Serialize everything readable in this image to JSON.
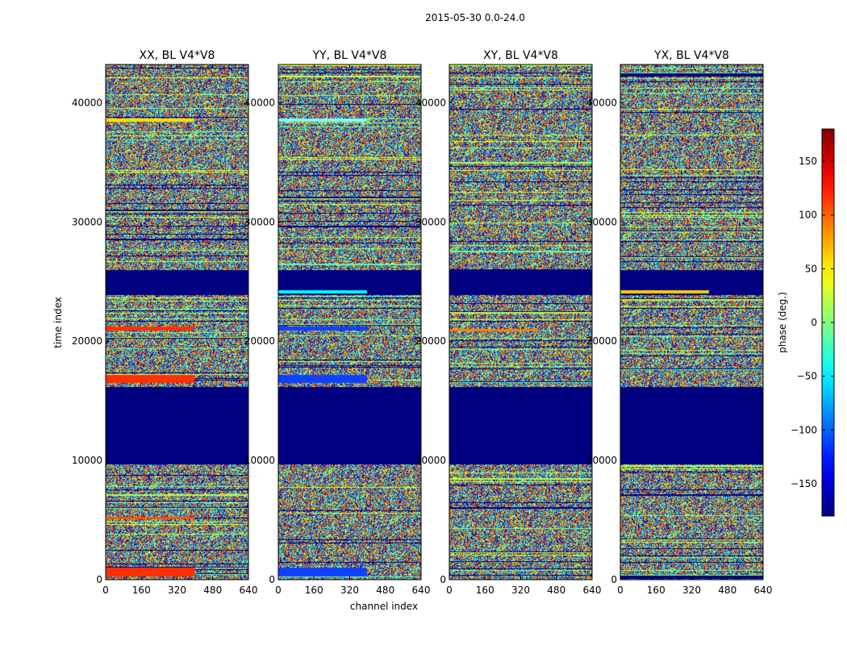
{
  "chart_data": {
    "type": "heatmap",
    "suptitle": "2015-05-30 0.0-24.0",
    "panels": [
      {
        "title": "XX, BL V4*V8",
        "pol": "XX"
      },
      {
        "title": "YY, BL V4*V8",
        "pol": "YY"
      },
      {
        "title": "XY, BL V4*V8",
        "pol": "XY"
      },
      {
        "title": "YX, BL V4*V8",
        "pol": "YX"
      }
    ],
    "xlabel": "channel index",
    "ylabel": "time index",
    "xlim": [
      0,
      640
    ],
    "ylim": [
      0,
      43200
    ],
    "xticks": [
      0,
      160,
      320,
      480,
      640
    ],
    "xtick_labels": [
      "0",
      "160",
      "320",
      "480",
      "640"
    ],
    "yticks": [
      0,
      10000,
      20000,
      30000,
      40000
    ],
    "ytick_labels": [
      "0",
      "10000",
      "20000",
      "30000",
      "40000"
    ],
    "colorbar": {
      "label": "phase (deg.)",
      "range": [
        -180,
        180
      ],
      "ticks": [
        150,
        100,
        50,
        0,
        -50,
        -100,
        -150
      ],
      "tick_labels": [
        "150",
        "100",
        "50",
        "0",
        "−50",
        "−100",
        "−150"
      ],
      "colormap": "jet"
    },
    "flagged_time_ranges": [
      [
        9700,
        16200
      ],
      [
        23900,
        26000
      ]
    ],
    "colors": {
      "flagged": "#000080",
      "noise": [
        "#00007f",
        "#0000ff",
        "#007fff",
        "#00ffff",
        "#7fff7f",
        "#ffff00",
        "#ff7f00",
        "#ff0000",
        "#7f0000"
      ]
    }
  }
}
